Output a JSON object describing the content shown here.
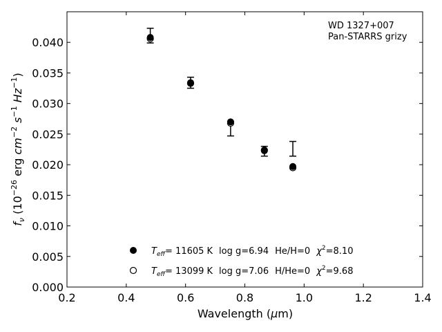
{
  "chart_data": {
    "type": "scatter",
    "annotation_lines": [
      "WD 1327+007",
      "Pan-STARRS grizy"
    ],
    "xlabel": "Wavelength (μm)",
    "ylabel": "fν (10⁻²⁶ erg cm⁻² s⁻¹ Hz⁻¹)",
    "xlim": [
      0.2,
      1.4
    ],
    "ylim": [
      0.0,
      0.045
    ],
    "x_ticks": [
      0.2,
      0.4,
      0.6,
      0.8,
      1.0,
      1.2,
      1.4
    ],
    "x_tick_labels": [
      "0.2",
      "0.4",
      "0.6",
      "0.8",
      "1.0",
      "1.2",
      "1.4"
    ],
    "y_ticks": [
      0.0,
      0.005,
      0.01,
      0.015,
      0.02,
      0.025,
      0.03,
      0.035,
      0.04
    ],
    "y_tick_labels": [
      "0.000",
      "0.005",
      "0.010",
      "0.015",
      "0.020",
      "0.025",
      "0.030",
      "0.035",
      "0.040"
    ],
    "grid": false,
    "legend_position": "bottom-center",
    "observed": {
      "x": [
        0.481,
        0.617,
        0.752,
        0.866,
        0.962
      ],
      "y": [
        0.0411,
        0.0334,
        0.0259,
        0.0222,
        0.0226
      ],
      "yerr": [
        0.0012,
        0.0009,
        0.0012,
        0.0008,
        0.0012
      ]
    },
    "series": [
      {
        "label": "T_eff= 11605 K  log g=6.94  He/H=0  χ²=8.10",
        "marker": "filled-circle",
        "x": [
          0.481,
          0.617,
          0.752,
          0.866,
          0.962
        ],
        "y": [
          0.0408,
          0.0334,
          0.027,
          0.0224,
          0.0197
        ]
      },
      {
        "label": "T_eff= 13099 K  log g=7.06  H/He=0  χ²=9.68",
        "marker": "open-circle",
        "x": [
          0.481,
          0.617,
          0.752,
          0.866,
          0.962
        ],
        "y": [
          0.0406,
          0.0333,
          0.0268,
          0.0223,
          0.0195
        ]
      }
    ]
  },
  "legend": {
    "entry1": {
      "teff_prefix": "T",
      "teff_sub": "eff",
      "teff_value": "= 11605 K",
      "logg": "log g=6.94",
      "comp": "He/H=0",
      "chi_prefix": "χ",
      "chi_sup": "2",
      "chi_value": "=8.10"
    },
    "entry2": {
      "teff_prefix": "T",
      "teff_sub": "eff",
      "teff_value": "= 13099 K",
      "logg": "log g=7.06",
      "comp": "H/He=0",
      "chi_prefix": "χ",
      "chi_sup": "2",
      "chi_value": "=9.68"
    }
  },
  "axis_labels": {
    "x_prefix": "Wavelength (",
    "x_mu": "μ",
    "x_suffix": "m)",
    "y_f": "f",
    "y_nu": "ν",
    "y_open": " (10",
    "y_exp1": "−26",
    "y_erg": " erg ",
    "y_cm": "cm",
    "y_exp2": "−2",
    "y_s": " s",
    "y_exp3": "−1",
    "y_hz": " Hz",
    "y_exp4": "−1",
    "y_close": ")"
  }
}
